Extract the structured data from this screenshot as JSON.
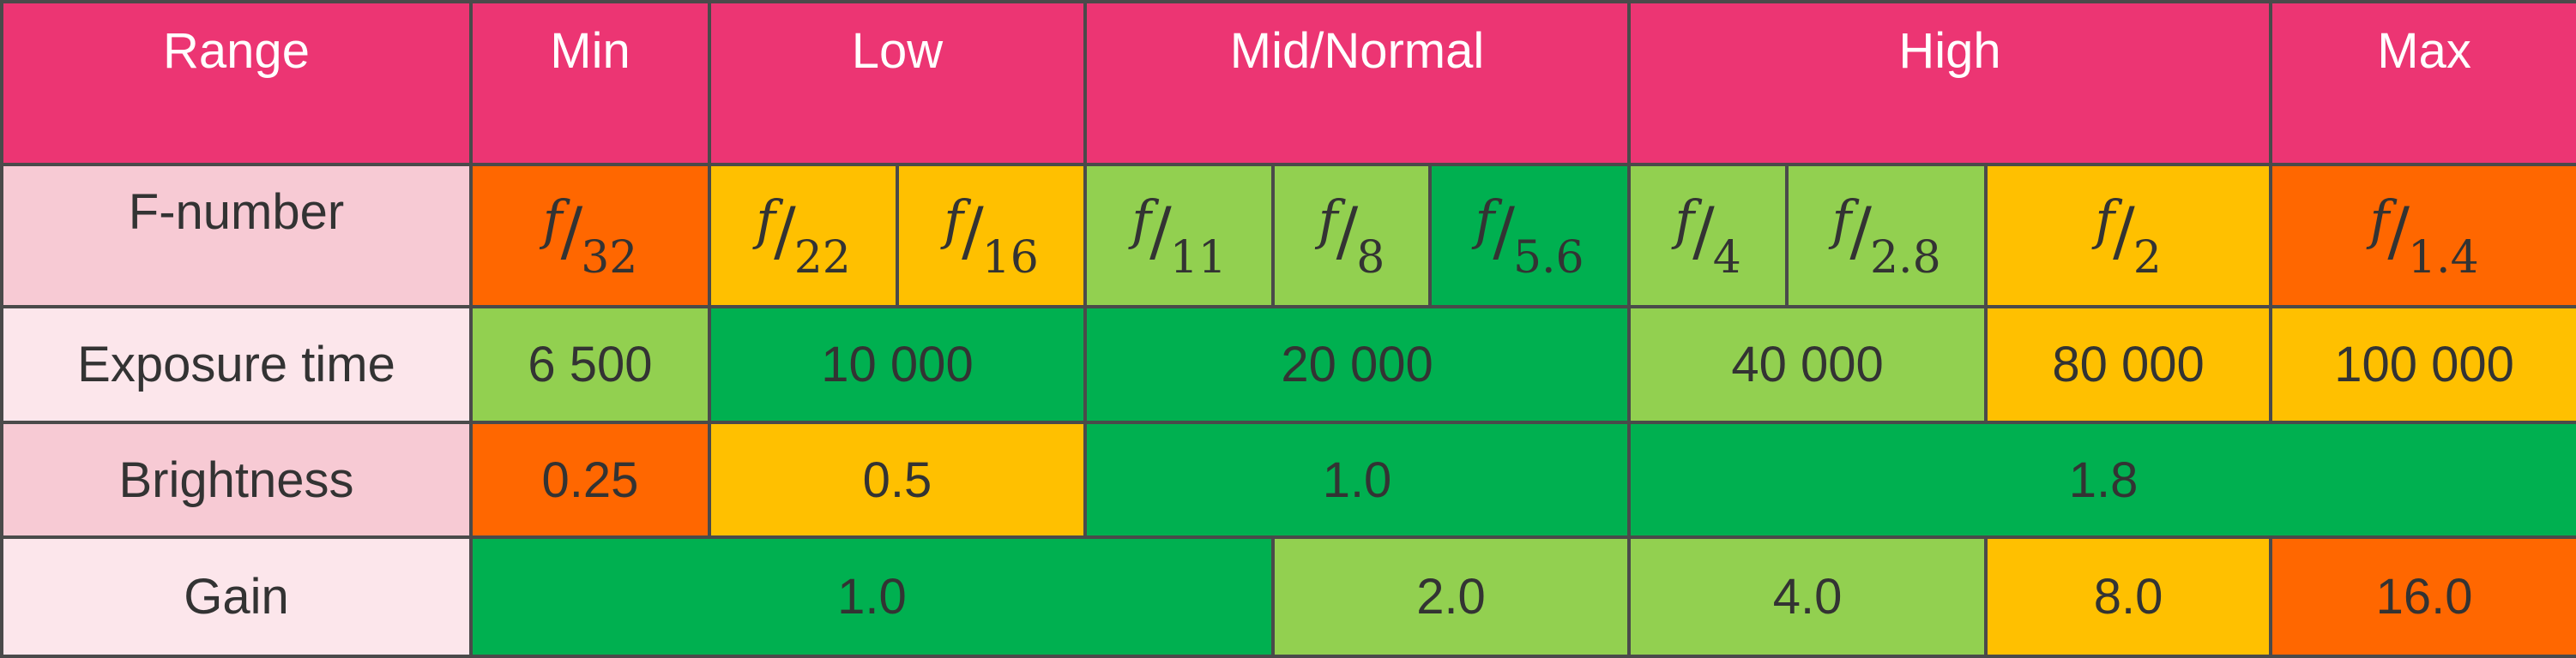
{
  "table": {
    "header": {
      "label": "Range",
      "ranges": [
        "Min",
        "Low",
        "Mid/Normal",
        "High",
        "Max"
      ]
    },
    "fnumber": {
      "label": "F-number",
      "prefix": "f",
      "values": [
        "32",
        "22",
        "16",
        "11",
        "8",
        "5.6",
        "4",
        "2.8",
        "2",
        "1.4"
      ],
      "colors": [
        "orange",
        "yellow",
        "yellow",
        "light-green",
        "light-green",
        "dark-green",
        "light-green",
        "light-green",
        "yellow",
        "orange"
      ]
    },
    "exposure": {
      "label": "Exposure time",
      "values": [
        "6 500",
        "10 000",
        "20 000",
        "40 000",
        "80 000",
        "100 000"
      ],
      "colors": [
        "light-green",
        "dark-green",
        "dark-green",
        "light-green",
        "yellow",
        "yellow"
      ]
    },
    "brightness": {
      "label": "Brightness",
      "values": [
        "0.25",
        "0.5",
        "1.0",
        "1.8"
      ],
      "colors": [
        "orange",
        "yellow",
        "dark-green",
        "dark-green"
      ]
    },
    "gain": {
      "label": "Gain",
      "values": [
        "1.0",
        "2.0",
        "4.0",
        "8.0",
        "16.0"
      ],
      "colors": [
        "dark-green",
        "light-green",
        "light-green",
        "yellow",
        "orange"
      ]
    }
  },
  "palette": {
    "header": "#ec3573",
    "orange": "#ff6700",
    "yellow": "#ffc000",
    "light-green": "#92d050",
    "dark-green": "#00b050",
    "row-label-dark": "#f7cad4",
    "row-label-light": "#fce6eb",
    "border": "#4a4a4a"
  }
}
